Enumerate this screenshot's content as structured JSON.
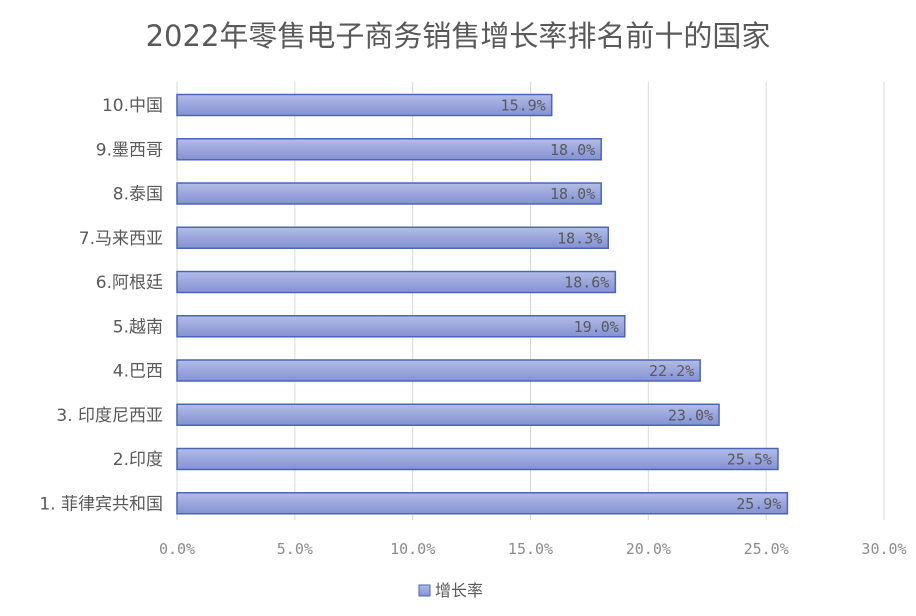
{
  "chart_data": {
    "type": "bar",
    "orientation": "horizontal",
    "title": "2022年零售电子商务销售增长率排名前十的国家",
    "categories": [
      "10.中国",
      "9.墨西哥",
      "8.泰国",
      "7.马来西亚",
      "6.阿根廷",
      "5.越南",
      "4.巴西",
      "3. 印度尼西亚",
      "2.印度",
      "1. 菲律宾共和国"
    ],
    "series": [
      {
        "name": "增长率",
        "values": [
          15.9,
          18.0,
          18.0,
          18.3,
          18.6,
          19.0,
          22.2,
          23.0,
          25.5,
          25.9
        ],
        "data_labels": [
          "15.9%",
          "18.0%",
          "18.0%",
          "18.3%",
          "18.6%",
          "19.0%",
          "22.2%",
          "23.0%",
          "25.5%",
          "25.9%"
        ]
      }
    ],
    "xlim": [
      0,
      30
    ],
    "x_ticks": [
      "0.0%",
      "5.0%",
      "10.0%",
      "15.0%",
      "20.0%",
      "25.0%",
      "30.0%"
    ],
    "grid": "vertical",
    "legend": "bottom",
    "colors": {
      "bar_fill": "#9aa6dc",
      "bar_stroke": "#4a66b8",
      "grid": "#d9d9d9",
      "text": "#595959"
    }
  }
}
